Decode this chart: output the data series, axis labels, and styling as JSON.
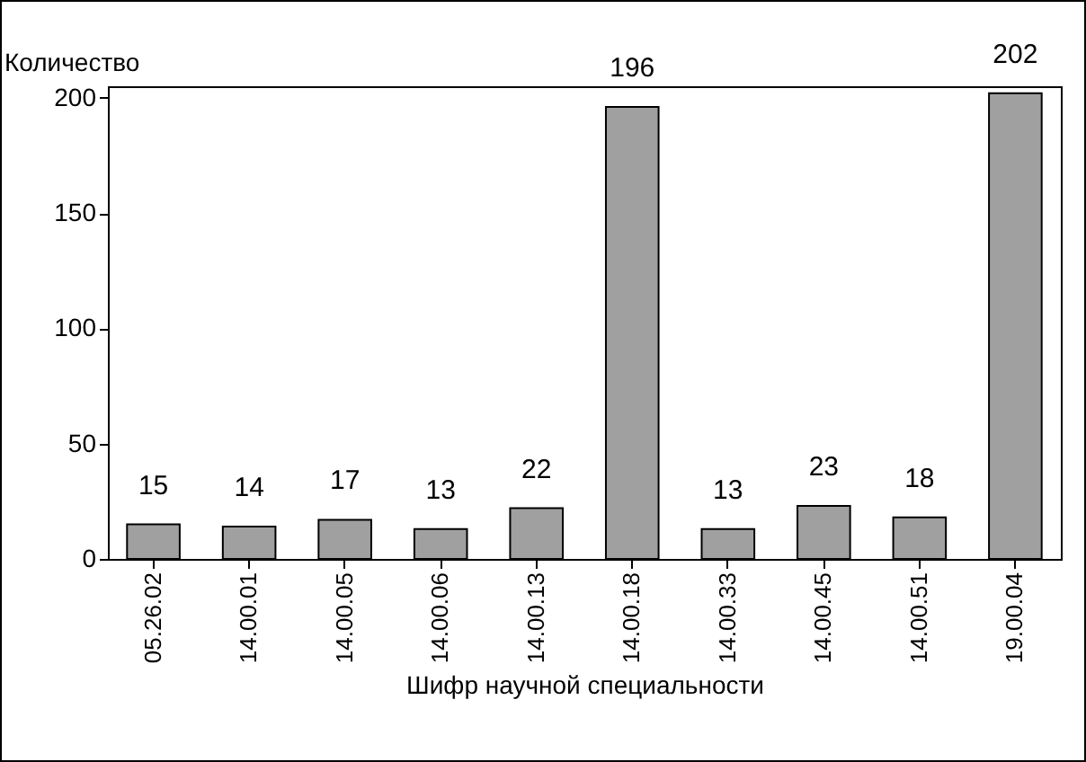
{
  "chart_data": {
    "type": "bar",
    "xlabel": "Шифр научной специальности",
    "ylabel": "Количество",
    "categories": [
      "05.26.02",
      "14.00.01",
      "14.00.05",
      "14.00.06",
      "14.00.13",
      "14.00.18",
      "14.00.33",
      "14.00.45",
      "14.00.51",
      "19.00.04"
    ],
    "values": [
      15,
      14,
      17,
      13,
      22,
      196,
      13,
      23,
      18,
      202
    ],
    "color": "#a0a0a0",
    "ylim": [
      0,
      205
    ],
    "yticks": [
      0,
      50,
      100,
      150,
      200
    ],
    "grid": false,
    "data_labels": true
  }
}
